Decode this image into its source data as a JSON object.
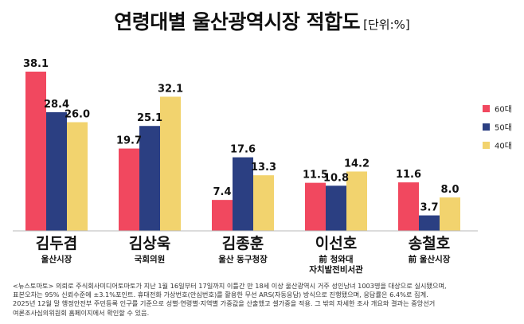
{
  "title": "연령대별 울산광역시장 적합도",
  "unit": "[단위:%]",
  "colors": {
    "60대": "#f1485f",
    "50대": "#2b3f82",
    "40대": "#f2d36e"
  },
  "chart_data": {
    "type": "bar",
    "categories": [
      "김두겸",
      "김상욱",
      "김종훈",
      "이선호",
      "송철호"
    ],
    "category_subtitles": [
      [
        "울산시장"
      ],
      [
        "국회의원"
      ],
      [
        "울산 동구청장"
      ],
      [
        "前 청와대",
        "자치발전비서관"
      ],
      [
        "前 울산시장"
      ]
    ],
    "series": [
      {
        "name": "60대",
        "values": [
          38.1,
          19.7,
          7.4,
          11.5,
          11.6
        ]
      },
      {
        "name": "50대",
        "values": [
          28.4,
          25.1,
          17.6,
          10.8,
          3.7
        ]
      },
      {
        "name": "40대",
        "values": [
          26.0,
          32.1,
          13.3,
          14.2,
          8.0
        ]
      }
    ],
    "value_labels": [
      [
        "38.1",
        "19.7",
        "7.4",
        "11.5",
        "11.6"
      ],
      [
        "28.4",
        "25.1",
        "17.6",
        "10.8",
        "3.7"
      ],
      [
        "26.0",
        "32.1",
        "13.3",
        "14.2",
        "8.0"
      ]
    ],
    "ylim": [
      0,
      40
    ],
    "legend": "right",
    "grid": false
  },
  "footnote": [
    "<뉴스토마토> 의뢰로 주식회사미디어토마토가 지난 1월 16일부터 17일까지 이틀간 만 18세 이상 울산광역시 거주 성인남녀 1003명을 대상으로 실시됐으며,",
    "표본오차는 95% 신뢰수준에 ±3.1%포인트. 휴대전화 가상번호(안심번호)를 활용한 무선 ARS(자동응답) 방식으로 진행됐으며, 응답률은 6.4%로 집계.",
    "2025년 12월 말 행정안전부 주민등록 인구를 기준으로 성별·연령별·지역별 가중값을 산출했고 셀가중을 적용. 그 밖의 자세한 조사 개요와 결과는 중앙선거",
    "여론조사심의위원회 홈페이지에서 확인할 수 있음."
  ]
}
